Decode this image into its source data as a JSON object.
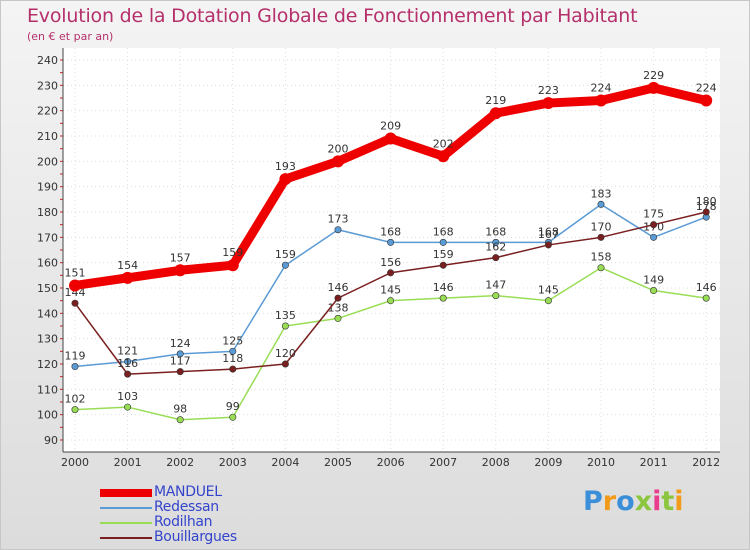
{
  "header": {
    "title": "Evolution de la Dotation Globale de Fonctionnement par Habitant",
    "subtitle": "(en € et par an)"
  },
  "chart_data": {
    "type": "line",
    "title": "Evolution de la Dotation Globale de Fonctionnement par Habitant",
    "subtitle": "(en € et par an)",
    "xlabel": "",
    "ylabel": "",
    "ylim": [
      90,
      240
    ],
    "ytick_step": 10,
    "grid": true,
    "legend_position": "bottom-left",
    "x": [
      "2000",
      "2001",
      "2002",
      "2003",
      "2004",
      "2005",
      "2006",
      "2007",
      "2008",
      "2009",
      "2010",
      "2011",
      "2012"
    ],
    "series": [
      {
        "name": "Redessan",
        "color": "#5b9bd5",
        "values": [
          119,
          121,
          124,
          125,
          159,
          173,
          168,
          168,
          168,
          168,
          183,
          170,
          178
        ]
      },
      {
        "name": "Rodilhan",
        "color": "#99dd55",
        "values": [
          102,
          103,
          98,
          99,
          135,
          138,
          145,
          146,
          147,
          145,
          158,
          149,
          146
        ]
      },
      {
        "name": "Bouillargues",
        "color": "#7a1f1f",
        "values": [
          144,
          116,
          117,
          118,
          120,
          146,
          156,
          159,
          162,
          167,
          170,
          175,
          180
        ]
      },
      {
        "name": "MANDUEL",
        "color": "#ee0000",
        "values": [
          151,
          154,
          157,
          159,
          193,
          200,
          209,
          202,
          219,
          223,
          224,
          229,
          224
        ]
      }
    ],
    "legend_order": [
      "MANDUEL",
      "Redessan",
      "Rodilhan",
      "Bouillargues"
    ]
  },
  "logo": {
    "text": "Proxiti"
  }
}
